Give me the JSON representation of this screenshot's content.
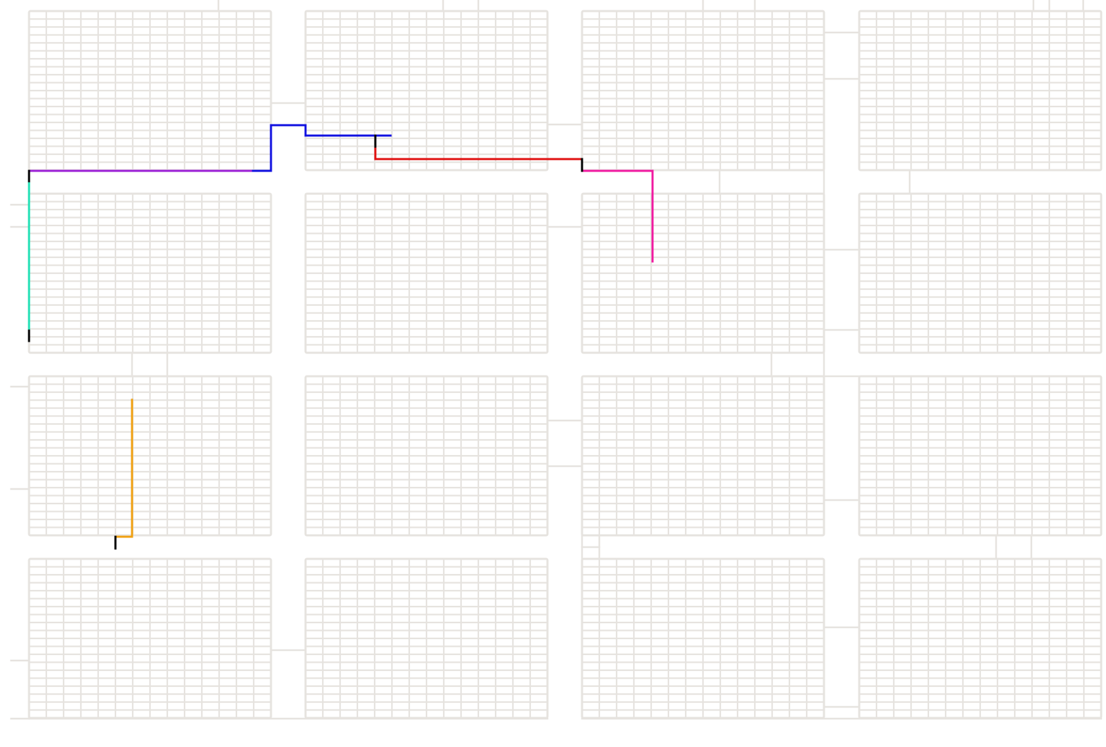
{
  "colors": {
    "background": "#ffffff",
    "grid": "#e6e3df",
    "route_cyan": "#1fe0b4",
    "route_purple": "#9b1fd6",
    "route_blue": "#1010e0",
    "route_red": "#e01010",
    "route_magenta": "#f01aa0",
    "route_orange": "#f0a010",
    "route_marker": "#000000"
  },
  "routes": [
    {
      "color_key": "route_cyan",
      "segments": [
        [
          [
            42,
            248
          ],
          [
            42,
            478
          ]
        ]
      ]
    },
    {
      "color_key": "route_purple",
      "segments": [
        [
          [
            42,
            247
          ],
          [
            366,
            247
          ]
        ]
      ]
    },
    {
      "color_key": "route_blue",
      "segments": [
        [
          [
            366,
            247
          ],
          [
            392,
            247
          ]
        ],
        [
          [
            392,
            247
          ],
          [
            392,
            181
          ]
        ],
        [
          [
            392,
            181
          ],
          [
            442,
            181
          ]
        ],
        [
          [
            442,
            181
          ],
          [
            442,
            196
          ]
        ],
        [
          [
            442,
            196
          ],
          [
            565,
            196
          ]
        ]
      ]
    },
    {
      "color_key": "route_red",
      "segments": [
        [
          [
            543,
            212
          ],
          [
            543,
            230
          ]
        ],
        [
          [
            543,
            230
          ],
          [
            842,
            230
          ]
        ]
      ]
    },
    {
      "color_key": "route_magenta",
      "segments": [
        [
          [
            844,
            247
          ],
          [
            944,
            247
          ]
        ],
        [
          [
            944,
            247
          ],
          [
            944,
            378
          ]
        ]
      ]
    },
    {
      "color_key": "route_orange",
      "segments": [
        [
          [
            191,
            578
          ],
          [
            191,
            776
          ]
        ],
        [
          [
            191,
            776
          ],
          [
            167,
            776
          ]
        ]
      ]
    },
    {
      "color_key": "route_marker",
      "segments": [
        [
          [
            42,
            247
          ],
          [
            42,
            262
          ]
        ],
        [
          [
            42,
            478
          ],
          [
            42,
            493
          ]
        ],
        [
          [
            543,
            196
          ],
          [
            543,
            212
          ]
        ],
        [
          [
            842,
            230
          ],
          [
            842,
            247
          ]
        ],
        [
          [
            167,
            776
          ],
          [
            167,
            793
          ]
        ]
      ]
    }
  ]
}
